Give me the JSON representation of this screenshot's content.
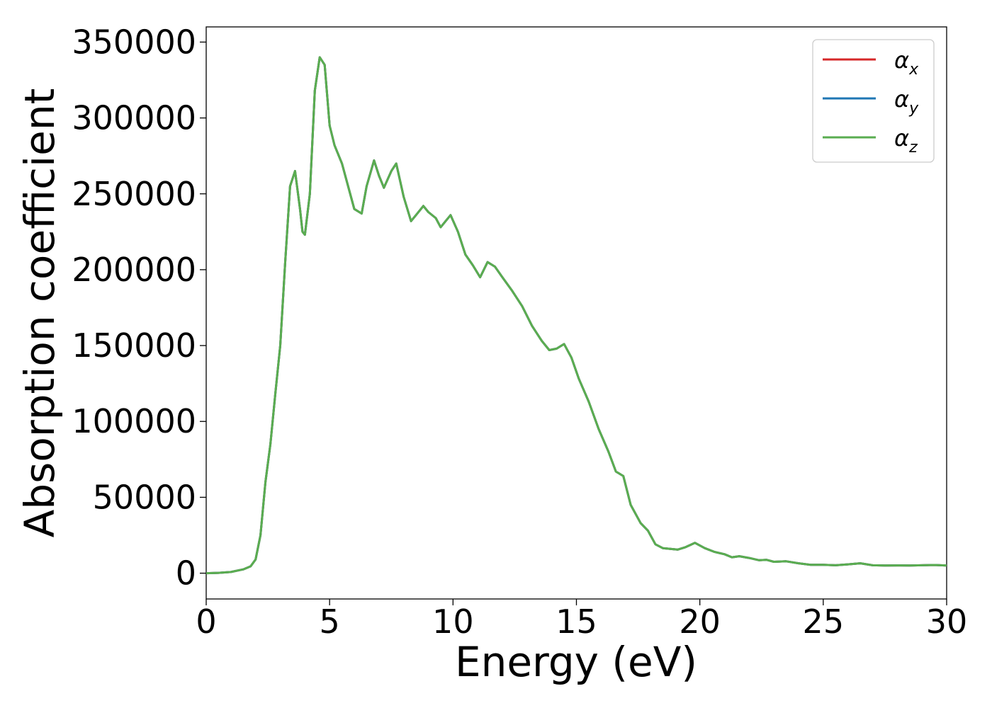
{
  "chart_data": {
    "type": "line",
    "title": "",
    "xlabel": "Energy (eV)",
    "ylabel": "Absorption coefficient",
    "xlim": [
      0,
      30
    ],
    "ylim": [
      -17000,
      360000
    ],
    "xticks": [
      0,
      5,
      10,
      15,
      20,
      25,
      30
    ],
    "xtick_labels": [
      "0",
      "5",
      "10",
      "15",
      "20",
      "25",
      "30"
    ],
    "yticks": [
      0,
      50000,
      100000,
      150000,
      200000,
      250000,
      300000,
      350000
    ],
    "ytick_labels": [
      "0",
      "50000",
      "100000",
      "150000",
      "200000",
      "250000",
      "300000",
      "350000"
    ],
    "grid": false,
    "legend_position": "top-right",
    "x": [
      0,
      0.5,
      1.0,
      1.5,
      1.8,
      2.0,
      2.2,
      2.4,
      2.6,
      2.8,
      3.0,
      3.2,
      3.4,
      3.6,
      3.8,
      3.9,
      4.0,
      4.2,
      4.4,
      4.6,
      4.8,
      4.9,
      5.0,
      5.2,
      5.5,
      6.0,
      6.3,
      6.5,
      6.8,
      7.0,
      7.2,
      7.5,
      7.7,
      8.0,
      8.3,
      8.5,
      8.8,
      9.0,
      9.3,
      9.5,
      9.7,
      9.9,
      10.2,
      10.5,
      10.8,
      11.1,
      11.4,
      11.7,
      12.0,
      12.4,
      12.8,
      13.2,
      13.6,
      13.9,
      14.2,
      14.5,
      14.8,
      15.1,
      15.5,
      15.9,
      16.3,
      16.6,
      16.9,
      17.2,
      17.6,
      17.9,
      18.2,
      18.5,
      18.8,
      19.1,
      19.4,
      19.8,
      20.2,
      20.6,
      21.0,
      21.3,
      21.6,
      22.0,
      22.4,
      22.7,
      23.0,
      23.5,
      24.0,
      24.5,
      25.0,
      25.5,
      26.0,
      26.5,
      27.0,
      27.5,
      28.0,
      28.5,
      29.0,
      29.5,
      30.0
    ],
    "series": [
      {
        "name": "α_x",
        "color": "#d62728",
        "values": [
          0,
          200,
          800,
          2500,
          4500,
          9000,
          25000,
          60000,
          85000,
          118000,
          150000,
          205000,
          255000,
          265000,
          240000,
          225000,
          223000,
          250000,
          318000,
          340000,
          335000,
          315000,
          295000,
          282000,
          270000,
          240000,
          237000,
          255000,
          272000,
          262000,
          254000,
          265000,
          270000,
          248000,
          232000,
          236000,
          242000,
          238000,
          234000,
          228000,
          232000,
          236000,
          225000,
          210000,
          203000,
          195000,
          205000,
          202000,
          195000,
          186000,
          176000,
          163000,
          153000,
          147000,
          148000,
          151000,
          142000,
          128000,
          113000,
          95000,
          80000,
          67000,
          64000,
          45000,
          33000,
          28000,
          19000,
          16500,
          16000,
          15500,
          17000,
          20000,
          16500,
          14000,
          12500,
          10500,
          11200,
          10000,
          8500,
          8800,
          7500,
          7800,
          6500,
          5500,
          5500,
          5200,
          5800,
          6500,
          5200,
          5000,
          5100,
          5000,
          5200,
          5400,
          5000
        ]
      },
      {
        "name": "α_y",
        "color": "#1f77b4",
        "values": [
          0,
          200,
          800,
          2500,
          4500,
          9000,
          25000,
          60000,
          85000,
          118000,
          150000,
          205000,
          255000,
          265000,
          240000,
          225000,
          223000,
          250000,
          318000,
          340000,
          335000,
          315000,
          295000,
          282000,
          270000,
          240000,
          237000,
          255000,
          272000,
          262000,
          254000,
          265000,
          270000,
          248000,
          232000,
          236000,
          242000,
          238000,
          234000,
          228000,
          232000,
          236000,
          225000,
          210000,
          203000,
          195000,
          205000,
          202000,
          195000,
          186000,
          176000,
          163000,
          153000,
          147000,
          148000,
          151000,
          142000,
          128000,
          113000,
          95000,
          80000,
          67000,
          64000,
          45000,
          33000,
          28000,
          19000,
          16500,
          16000,
          15500,
          17000,
          20000,
          16500,
          14000,
          12500,
          10500,
          11200,
          10000,
          8500,
          8800,
          7500,
          7800,
          6500,
          5500,
          5500,
          5200,
          5800,
          6500,
          5200,
          5000,
          5100,
          5000,
          5200,
          5400,
          5000
        ]
      },
      {
        "name": "α_z",
        "color": "#5aad50",
        "values": [
          0,
          200,
          800,
          2500,
          4500,
          9000,
          25000,
          60000,
          85000,
          118000,
          150000,
          205000,
          255000,
          265000,
          240000,
          225000,
          223000,
          250000,
          318000,
          340000,
          335000,
          315000,
          295000,
          282000,
          270000,
          240000,
          237000,
          255000,
          272000,
          262000,
          254000,
          265000,
          270000,
          248000,
          232000,
          236000,
          242000,
          238000,
          234000,
          228000,
          232000,
          236000,
          225000,
          210000,
          203000,
          195000,
          205000,
          202000,
          195000,
          186000,
          176000,
          163000,
          153000,
          147000,
          148000,
          151000,
          142000,
          128000,
          113000,
          95000,
          80000,
          67000,
          64000,
          45000,
          33000,
          28000,
          19000,
          16500,
          16000,
          15500,
          17000,
          20000,
          16500,
          14000,
          12500,
          10500,
          11200,
          10000,
          8500,
          8800,
          7500,
          7800,
          6500,
          5500,
          5500,
          5200,
          5800,
          6500,
          5200,
          5000,
          5100,
          5000,
          5200,
          5400,
          5000
        ]
      }
    ],
    "legend": [
      {
        "symbol": "α",
        "sub": "x",
        "color": "#d62728"
      },
      {
        "symbol": "α",
        "sub": "y",
        "color": "#1f77b4"
      },
      {
        "symbol": "α",
        "sub": "z",
        "color": "#5aad50"
      }
    ]
  }
}
